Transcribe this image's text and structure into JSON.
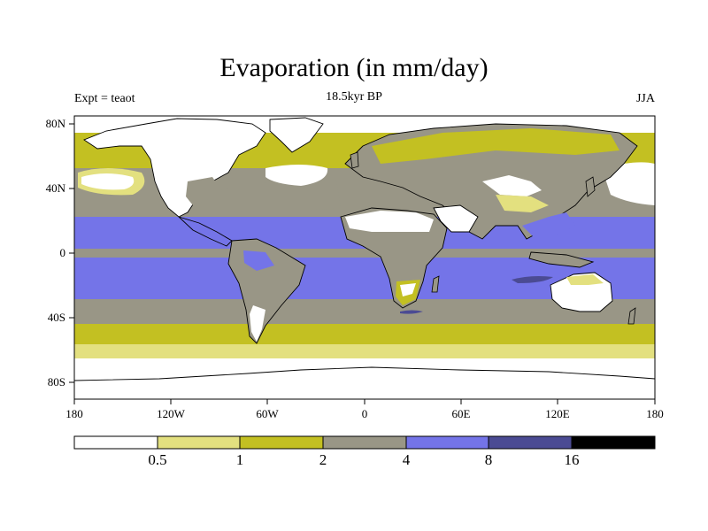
{
  "header": {
    "title": "Evaporation (in mm/day)",
    "subtitle": "18.5kyr BP",
    "left_label": "Expt = teaot",
    "right_label": "JJA"
  },
  "map": {
    "lat_ticks": [
      "80N",
      "40N",
      "0",
      "40S",
      "80S"
    ],
    "lon_ticks": [
      "180",
      "120W",
      "60W",
      "0",
      "60E",
      "120E",
      "180"
    ]
  },
  "colorbar": {
    "colors": [
      "#ffffff",
      "#e3e07f",
      "#c3c022",
      "#999686",
      "#7474e8",
      "#4b4b93",
      "#000000"
    ],
    "labels": [
      "0.5",
      "1",
      "2",
      "4",
      "8",
      "16"
    ]
  },
  "colors": {
    "land": "#ffffff",
    "coast": "#000000"
  }
}
